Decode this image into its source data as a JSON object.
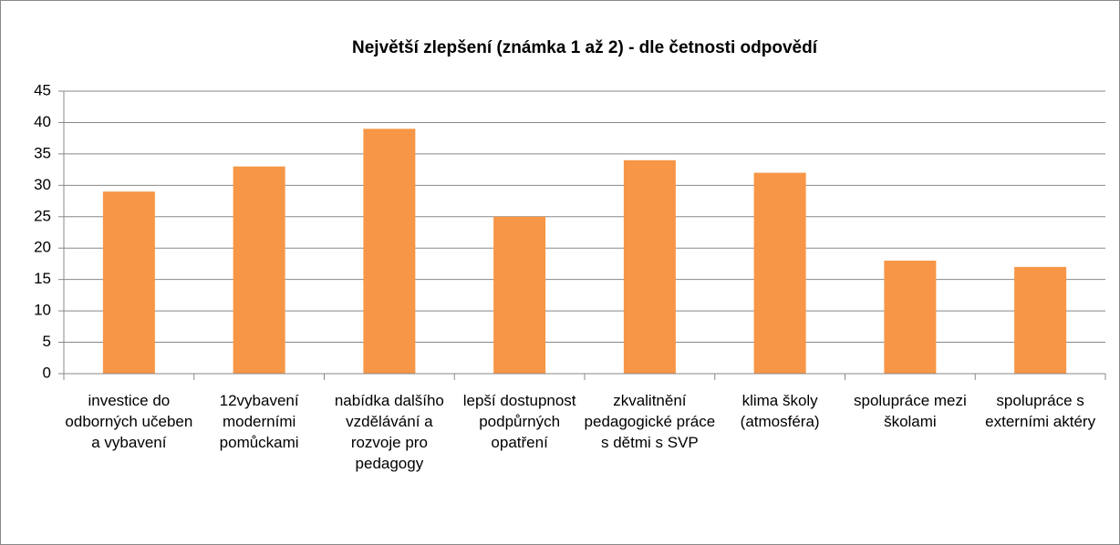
{
  "chart_data": {
    "type": "bar",
    "title": "Největší zlepšení (známka 1 až 2) - dle četnosti odpovědí",
    "categories": [
      "investice do odborných učeben a vybavení",
      "12vybavení moderními pomůckami",
      "nabídka dalšího vzdělávání a rozvoje pro pedagogy",
      "lepší dostupnost podpůrných opatření",
      "zkvalitnění pedagogické práce s dětmi s SVP",
      "klima školy (atmosféra)",
      "spolupráce mezi školami",
      "spolupráce s externími aktéry"
    ],
    "values": [
      29,
      33,
      39,
      25,
      34,
      32,
      18,
      17
    ],
    "color": "#f79646",
    "ylim": [
      0,
      45
    ],
    "yticks": [
      0,
      5,
      10,
      15,
      20,
      25,
      30,
      35,
      40,
      45
    ],
    "grid": true
  }
}
